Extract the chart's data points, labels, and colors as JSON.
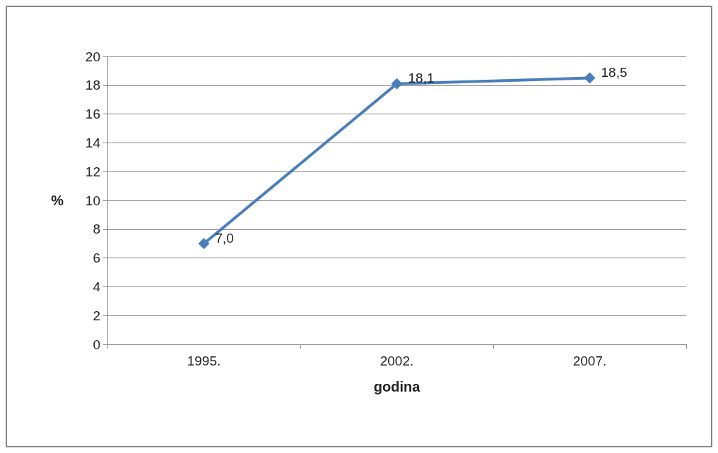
{
  "chart_data": {
    "type": "line",
    "xlabel": "godina",
    "ylabel": "%",
    "categories": [
      "1995.",
      "2002.",
      "2007."
    ],
    "series": [
      {
        "color": "#4a7ebb",
        "values": [
          7.0,
          18.1,
          18.5
        ],
        "value_labels": [
          "7,0",
          "18,1",
          "18,5"
        ]
      }
    ],
    "ylim": [
      0,
      20
    ],
    "yticks": [
      0,
      2,
      4,
      6,
      8,
      10,
      12,
      14,
      16,
      18,
      20
    ],
    "grid": "y",
    "marker": "diamond",
    "line_style": "solid"
  }
}
